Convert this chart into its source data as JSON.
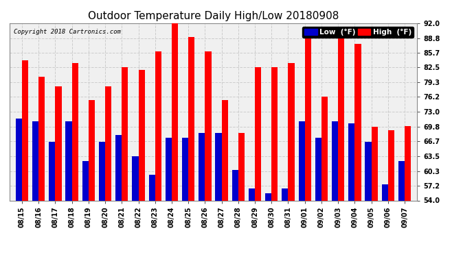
{
  "title": "Outdoor Temperature Daily High/Low 20180908",
  "copyright": "Copyright 2018 Cartronics.com",
  "dates": [
    "08/15",
    "08/16",
    "08/17",
    "08/18",
    "08/19",
    "08/20",
    "08/21",
    "08/22",
    "08/23",
    "08/24",
    "08/25",
    "08/26",
    "08/27",
    "08/28",
    "08/29",
    "08/30",
    "08/31",
    "09/01",
    "09/02",
    "09/03",
    "09/04",
    "09/05",
    "09/06",
    "09/07"
  ],
  "high": [
    84.0,
    80.5,
    78.5,
    83.5,
    75.5,
    78.5,
    82.5,
    82.0,
    86.0,
    92.0,
    89.0,
    86.0,
    75.5,
    68.5,
    82.5,
    82.5,
    83.5,
    88.8,
    76.2,
    90.5,
    87.5,
    69.8,
    69.0,
    70.0
  ],
  "low": [
    71.5,
    71.0,
    66.5,
    71.0,
    62.5,
    66.5,
    68.0,
    63.5,
    59.5,
    67.5,
    67.5,
    68.5,
    68.5,
    60.5,
    56.5,
    55.5,
    56.5,
    71.0,
    67.5,
    71.0,
    70.5,
    66.5,
    57.5,
    62.5
  ],
  "ylim": [
    54.0,
    92.0
  ],
  "yticks": [
    54.0,
    57.2,
    60.3,
    63.5,
    66.7,
    69.8,
    73.0,
    76.2,
    79.3,
    82.5,
    85.7,
    88.8,
    92.0
  ],
  "bar_width": 0.38,
  "high_color": "#ff0000",
  "low_color": "#0000cc",
  "bg_color": "#ffffff",
  "plot_bg_color": "#f0f0f0",
  "grid_color": "#cccccc",
  "title_fontsize": 11,
  "tick_fontsize": 7,
  "legend_low_label": "Low  (°F)",
  "legend_high_label": "High  (°F)"
}
